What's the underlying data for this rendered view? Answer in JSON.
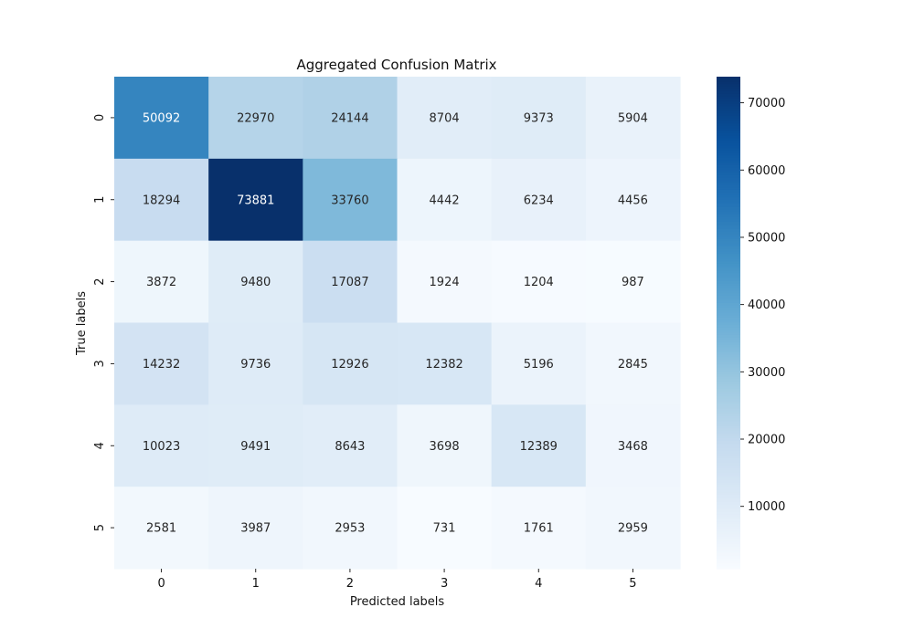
{
  "chart_data": {
    "type": "heatmap",
    "title": "Aggregated Confusion Matrix",
    "xlabel": "Predicted labels",
    "ylabel": "True labels",
    "x_categories": [
      "0",
      "1",
      "2",
      "3",
      "4",
      "5"
    ],
    "y_categories": [
      "0",
      "1",
      "2",
      "3",
      "4",
      "5"
    ],
    "matrix": [
      [
        50092,
        22970,
        24144,
        8704,
        9373,
        5904
      ],
      [
        18294,
        73881,
        33760,
        4442,
        6234,
        4456
      ],
      [
        3872,
        9480,
        17087,
        1924,
        1204,
        987
      ],
      [
        14232,
        9736,
        12926,
        12382,
        5196,
        2845
      ],
      [
        10023,
        9491,
        8643,
        3698,
        12389,
        3468
      ],
      [
        2581,
        3987,
        2953,
        731,
        1761,
        2959
      ]
    ],
    "colormap": "Blues",
    "value_range": [
      731,
      73881
    ],
    "colorbar_ticks": [
      10000,
      20000,
      30000,
      40000,
      50000,
      60000,
      70000
    ],
    "colorbar_tick_labels": [
      "10000",
      "20000",
      "30000",
      "40000",
      "50000",
      "60000",
      "70000"
    ],
    "grid": false
  }
}
